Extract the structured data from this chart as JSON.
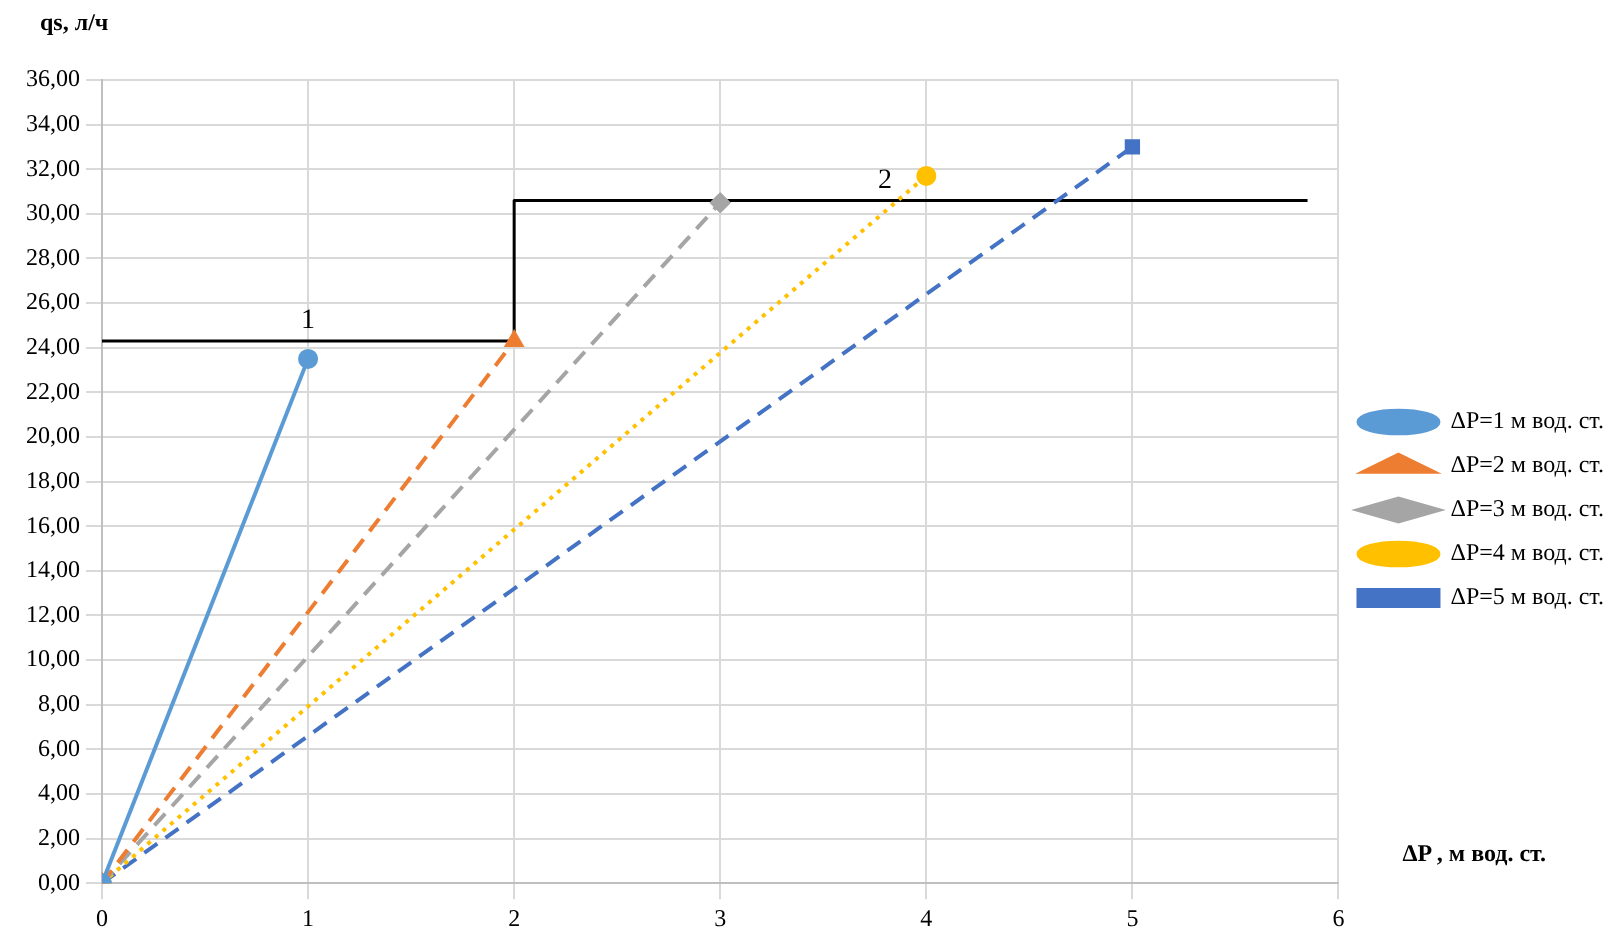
{
  "chart_data": {
    "type": "line",
    "xlabel": "ΔP , м вод. ст.",
    "ylabel": "qs, л/ч",
    "xlim": [
      0,
      6
    ],
    "xticks": [
      0,
      1,
      2,
      3,
      4,
      5,
      6
    ],
    "ylim": [
      0,
      36
    ],
    "yticks": [
      {
        "value": 0,
        "label": "0,00"
      },
      {
        "value": 2,
        "label": "2,00"
      },
      {
        "value": 4,
        "label": "4,00"
      },
      {
        "value": 6,
        "label": "6,00"
      },
      {
        "value": 8,
        "label": "8,00"
      },
      {
        "value": 10,
        "label": "10,00"
      },
      {
        "value": 12,
        "label": "12,00"
      },
      {
        "value": 14,
        "label": "14,00"
      },
      {
        "value": 16,
        "label": "16,00"
      },
      {
        "value": 18,
        "label": "18,00"
      },
      {
        "value": 20,
        "label": "20,00"
      },
      {
        "value": 22,
        "label": "22,00"
      },
      {
        "value": 24,
        "label": "24,00"
      },
      {
        "value": 26,
        "label": "26,00"
      },
      {
        "value": 28,
        "label": "28,00"
      },
      {
        "value": 30,
        "label": "30,00"
      },
      {
        "value": 32,
        "label": "32,00"
      },
      {
        "value": 34,
        "label": "34,00"
      },
      {
        "value": 36,
        "label": "36,00"
      }
    ],
    "grid": true,
    "legend": "right",
    "series": [
      {
        "name": "ΔP=1 м вод. ст.",
        "color": "#5b9bd5",
        "x": [
          0,
          1
        ],
        "values": [
          0,
          23.5
        ],
        "marker": "circle",
        "line_style": "solid"
      },
      {
        "name": "ΔP=2 м вод. ст.",
        "color": "#ed7d31",
        "x": [
          0,
          2
        ],
        "values": [
          0,
          24.3
        ],
        "marker": "triangle",
        "line_style": "dashed"
      },
      {
        "name": "ΔP=3 м вод. ст.",
        "color": "#a5a5a5",
        "x": [
          0,
          3
        ],
        "values": [
          0,
          30.5
        ],
        "marker": "diamond",
        "line_style": "dashed"
      },
      {
        "name": "ΔP=4 м вод. ст.",
        "color": "#ffc000",
        "x": [
          0,
          4
        ],
        "values": [
          0,
          31.7
        ],
        "marker": "circle",
        "line_style": "dotted"
      },
      {
        "name": "ΔP=5 м вод. ст.",
        "color": "#4472c4",
        "x": [
          0,
          5
        ],
        "values": [
          0,
          33.0
        ],
        "marker": "square",
        "line_style": "dashed"
      },
      {
        "color": "#000000",
        "x": [
          0,
          2,
          2,
          5.85
        ],
        "values": [
          24.3,
          24.3,
          30.6,
          30.6
        ],
        "marker": "none",
        "line_style": "solid"
      }
    ],
    "annotations": [
      {
        "text": "1",
        "x": 1,
        "y": 24.3
      },
      {
        "text": "2",
        "x": 3.8,
        "y": 30.6
      }
    ]
  }
}
